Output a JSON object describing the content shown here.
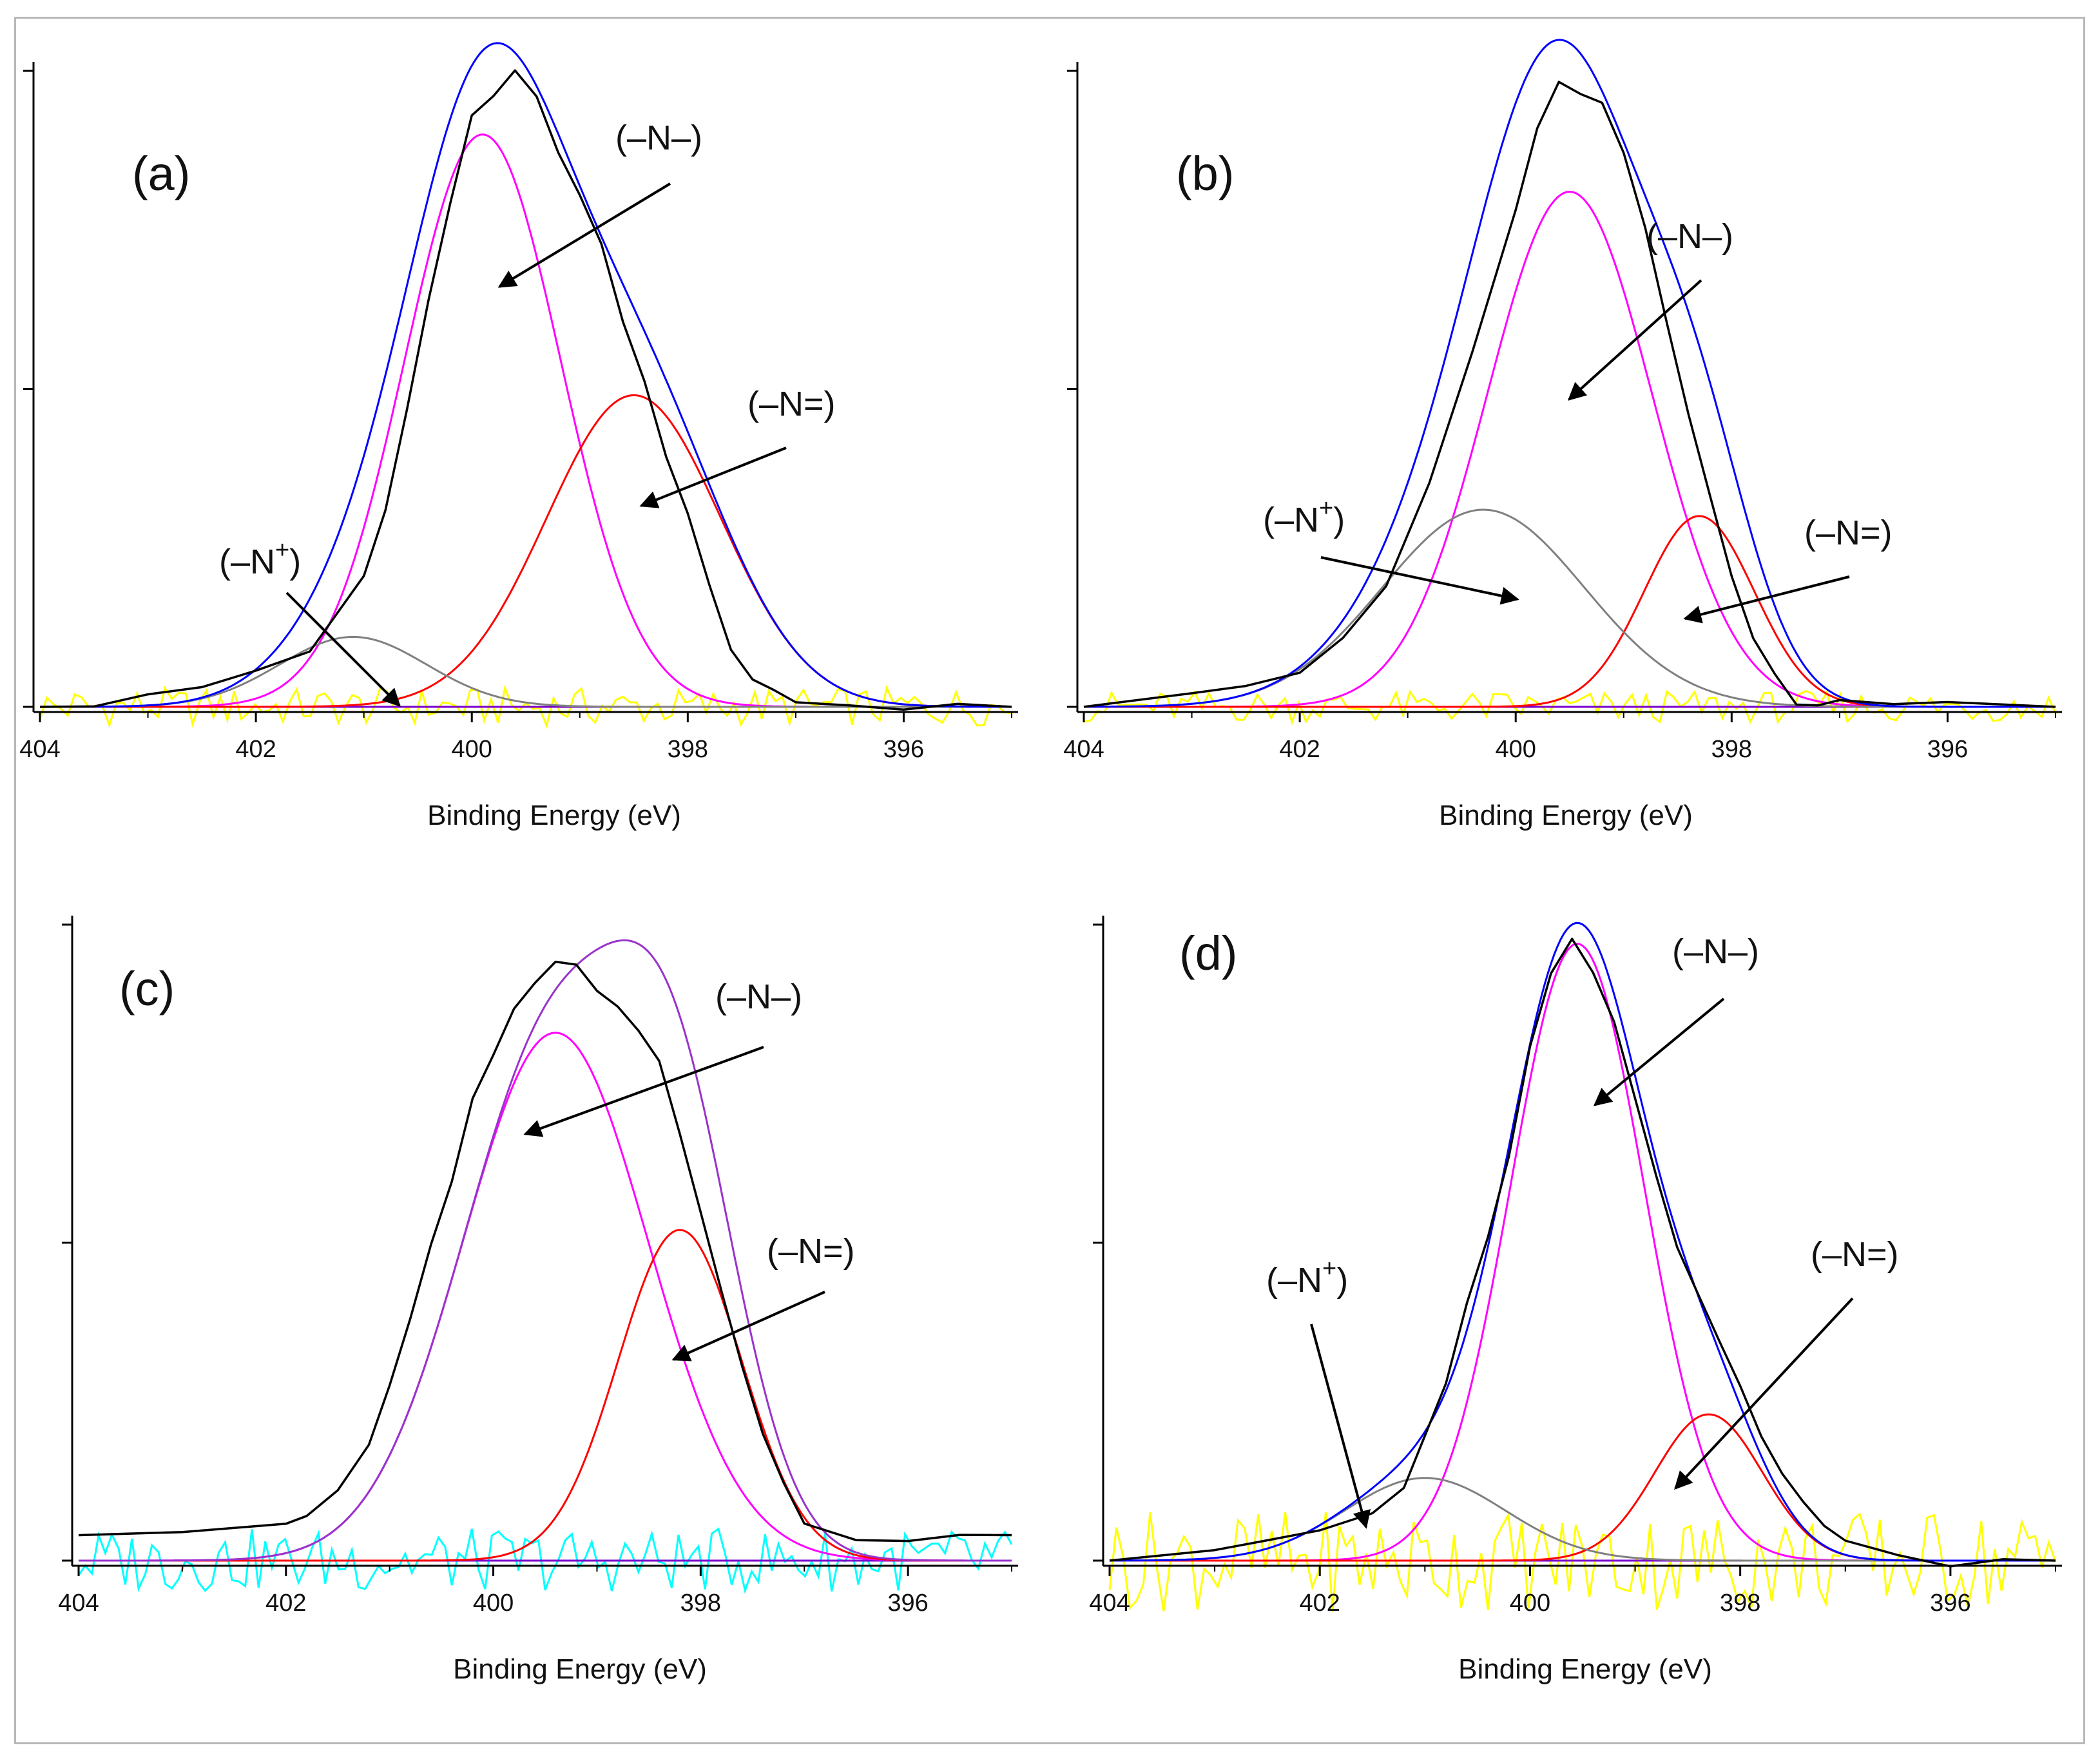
{
  "chart_data": [
    {
      "type": "line",
      "panel_label": "(a)",
      "xlabel": "Binding Energy (eV)",
      "ylabel": "",
      "xlim": [
        404,
        395
      ],
      "ylim": [
        0,
        1
      ],
      "x_reversed": true,
      "xticks": [
        404,
        402,
        400,
        398,
        396
      ],
      "yticks": [
        0,
        0.5,
        1.0
      ],
      "y_tick_labels_shown": false,
      "grid": false,
      "baseline_color": "#7a00cc",
      "components": [
        {
          "color": "#ff00ff",
          "center": 399.9,
          "height": 0.9,
          "fwhm": 1.7
        },
        {
          "color": "#ff0000",
          "center": 398.5,
          "height": 0.49,
          "fwhm": 1.9
        },
        {
          "color": "#808080",
          "center": 401.1,
          "height": 0.11,
          "fwhm": 1.6
        }
      ],
      "envelope_color": "#0000ff",
      "experimental": {
        "color": "#000000",
        "x": [
          404.0,
          403.5,
          403.0,
          402.5,
          402.0,
          401.5,
          401.0,
          400.8,
          400.6,
          400.4,
          400.2,
          400.0,
          399.8,
          399.6,
          399.4,
          399.2,
          399.0,
          398.8,
          398.6,
          398.4,
          398.2,
          398.0,
          397.8,
          397.6,
          397.4,
          397.2,
          397.0,
          396.5,
          396.0,
          395.5,
          395.0
        ],
        "y": [
          0.0,
          0.01,
          0.01,
          0.03,
          0.05,
          0.09,
          0.2,
          0.32,
          0.46,
          0.63,
          0.8,
          0.92,
          0.97,
          1.0,
          0.95,
          0.87,
          0.8,
          0.72,
          0.6,
          0.5,
          0.4,
          0.3,
          0.2,
          0.1,
          0.04,
          0.02,
          0.0,
          0.01,
          0.0,
          0.01,
          0.0
        ]
      },
      "residual": {
        "color": "#ffff00",
        "amplitude": 0.03
      },
      "annotations": [
        {
          "text": "(–N–)"
        },
        {
          "text": "(–N=)"
        },
        {
          "text": "(–N",
          "sup": "+",
          "close": ")"
        }
      ]
    },
    {
      "type": "line",
      "panel_label": "(b)",
      "xlabel": "Binding Energy (eV)",
      "ylabel": "",
      "xlim": [
        404,
        395
      ],
      "ylim": [
        0,
        1
      ],
      "x_reversed": true,
      "xticks": [
        404,
        402,
        400,
        398,
        396
      ],
      "yticks": [
        0,
        0.5,
        1.0
      ],
      "y_tick_labels_shown": false,
      "grid": false,
      "baseline_color": "#7a00cc",
      "components": [
        {
          "color": "#ff00ff",
          "center": 399.5,
          "height": 0.81,
          "fwhm": 1.8
        },
        {
          "color": "#ff0000",
          "center": 398.3,
          "height": 0.3,
          "fwhm": 1.2
        },
        {
          "color": "#808080",
          "center": 400.3,
          "height": 0.31,
          "fwhm": 2.2
        }
      ],
      "envelope_color": "#0000ff",
      "experimental": {
        "color": "#000000",
        "x": [
          404.0,
          403.0,
          402.5,
          402.0,
          401.6,
          401.2,
          400.8,
          400.4,
          400.0,
          399.8,
          399.6,
          399.4,
          399.2,
          399.0,
          398.8,
          398.6,
          398.4,
          398.2,
          398.0,
          397.8,
          397.6,
          397.4,
          397.2,
          397.0,
          396.5,
          396.0,
          395.0
        ],
        "y": [
          0.0,
          0.01,
          0.04,
          0.06,
          0.12,
          0.2,
          0.35,
          0.55,
          0.78,
          0.92,
          0.98,
          0.97,
          0.95,
          0.88,
          0.76,
          0.6,
          0.46,
          0.32,
          0.2,
          0.1,
          0.04,
          0.01,
          0.0,
          0.0,
          0.0,
          0.0,
          0.0
        ]
      },
      "residual": {
        "color": "#ffff00",
        "amplitude": 0.025
      },
      "annotations": [
        {
          "text": "(–N–)"
        },
        {
          "text": "(–N",
          "sup": "+",
          "close": ")"
        },
        {
          "text": "(–N=)"
        }
      ]
    },
    {
      "type": "line",
      "panel_label": "(c)",
      "xlabel": "Binding Energy (eV)",
      "ylabel": "",
      "xlim": [
        404,
        395
      ],
      "ylim": [
        0,
        1
      ],
      "x_reversed": true,
      "xticks": [
        404,
        402,
        400,
        398,
        396
      ],
      "yticks": [
        0,
        0.5,
        1.0
      ],
      "y_tick_labels_shown": false,
      "grid": false,
      "baseline_color": "#7a00cc",
      "components": [
        {
          "color": "#ff00ff",
          "center": 399.4,
          "height": 0.83,
          "fwhm": 2.1
        },
        {
          "color": "#ff0000",
          "center": 398.2,
          "height": 0.52,
          "fwhm": 1.4
        }
      ],
      "envelope_color": "#9933cc",
      "experimental": {
        "color": "#000000",
        "x": [
          404.0,
          403.0,
          402.0,
          401.8,
          401.5,
          401.2,
          401.0,
          400.8,
          400.6,
          400.4,
          400.2,
          400.0,
          399.8,
          399.6,
          399.4,
          399.2,
          399.0,
          398.8,
          398.6,
          398.4,
          398.2,
          398.0,
          397.8,
          397.6,
          397.4,
          397.2,
          397.0,
          396.5,
          396.0,
          395.5,
          395.0
        ],
        "y": [
          0.04,
          0.05,
          0.06,
          0.07,
          0.12,
          0.18,
          0.28,
          0.38,
          0.5,
          0.6,
          0.72,
          0.8,
          0.86,
          0.9,
          0.93,
          0.94,
          0.9,
          0.88,
          0.84,
          0.78,
          0.68,
          0.56,
          0.42,
          0.3,
          0.2,
          0.12,
          0.06,
          0.03,
          0.04,
          0.03,
          0.04
        ]
      },
      "residual": {
        "color": "#00ffff",
        "amplitude": 0.05
      },
      "annotations": [
        {
          "text": "(–N–)"
        },
        {
          "text": "(–N=)"
        }
      ]
    },
    {
      "type": "line",
      "panel_label": "(d)",
      "xlabel": "Binding Energy (eV)",
      "ylabel": "",
      "xlim": [
        404,
        395
      ],
      "ylim": [
        0,
        1
      ],
      "x_reversed": true,
      "xticks": [
        404,
        402,
        400,
        398,
        396
      ],
      "yticks": [
        0,
        0.5,
        1.0
      ],
      "y_tick_labels_shown": false,
      "grid": false,
      "baseline_color": "#7a00cc",
      "components": [
        {
          "color": "#ff00ff",
          "center": 399.55,
          "height": 0.97,
          "fwhm": 1.5
        },
        {
          "color": "#ff0000",
          "center": 398.3,
          "height": 0.23,
          "fwhm": 1.2
        },
        {
          "color": "#808080",
          "center": 401.0,
          "height": 0.13,
          "fwhm": 1.8
        }
      ],
      "envelope_color": "#0000ff",
      "experimental": {
        "color": "#000000",
        "x": [
          404.0,
          403.0,
          402.5,
          402.0,
          401.5,
          401.2,
          401.0,
          400.8,
          400.6,
          400.4,
          400.2,
          400.0,
          399.8,
          399.6,
          399.4,
          399.2,
          399.0,
          398.8,
          398.6,
          398.4,
          398.2,
          398.0,
          397.8,
          397.6,
          397.4,
          397.2,
          397.0,
          396.5,
          396.0,
          395.5,
          395.0
        ],
        "y": [
          0.0,
          0.01,
          0.02,
          0.04,
          0.08,
          0.12,
          0.19,
          0.28,
          0.4,
          0.52,
          0.64,
          0.8,
          0.92,
          0.97,
          0.93,
          0.84,
          0.72,
          0.6,
          0.5,
          0.42,
          0.34,
          0.27,
          0.2,
          0.14,
          0.09,
          0.05,
          0.02,
          0.01,
          0.0,
          0.01,
          0.0
        ]
      },
      "residual": {
        "color": "#ffff00",
        "amplitude": 0.08
      },
      "annotations": [
        {
          "text": "(–N–)"
        },
        {
          "text": "(–N",
          "sup": "+",
          "close": ")"
        },
        {
          "text": "(–N=)"
        }
      ]
    }
  ]
}
